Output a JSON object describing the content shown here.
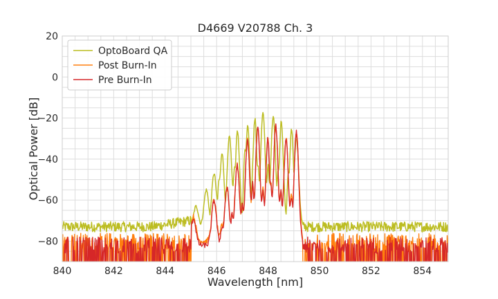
{
  "chart_data": {
    "type": "line",
    "title": "D4669 V20788 Ch. 3",
    "xlabel": "Wavelength [nm]",
    "ylabel": "Optical Power [dB]",
    "xlim": [
      840,
      855
    ],
    "ylim": [
      -90,
      20
    ],
    "xticks": [
      840,
      842,
      844,
      846,
      848,
      850,
      852,
      854
    ],
    "yticks": [
      20,
      0,
      -20,
      -40,
      -60,
      -80
    ],
    "ytick_labels": [
      "20",
      "0",
      "−20",
      "−40",
      "−60",
      "−80"
    ],
    "grid": true,
    "legend_position": "top-left",
    "series": [
      {
        "name": "OptoBoard QA",
        "color": "#bcbd22",
        "noise_floor": -73,
        "peaks": [
          {
            "x": 845.2,
            "y": -63
          },
          {
            "x": 845.6,
            "y": -55
          },
          {
            "x": 845.9,
            "y": -47
          },
          {
            "x": 846.2,
            "y": -36
          },
          {
            "x": 846.5,
            "y": -29
          },
          {
            "x": 846.8,
            "y": -25
          },
          {
            "x": 847.2,
            "y": -23
          },
          {
            "x": 847.5,
            "y": -19
          },
          {
            "x": 847.8,
            "y": -17
          },
          {
            "x": 848.2,
            "y": -19
          },
          {
            "x": 848.5,
            "y": -20
          },
          {
            "x": 848.9,
            "y": -24
          },
          {
            "x": 849.1,
            "y": -30
          }
        ],
        "troughs": [
          {
            "x": 846.1,
            "y": -50
          },
          {
            "x": 846.7,
            "y": -44
          },
          {
            "x": 847.1,
            "y": -36
          },
          {
            "x": 847.6,
            "y": -43
          },
          {
            "x": 848.0,
            "y": -43
          },
          {
            "x": 848.4,
            "y": -46
          },
          {
            "x": 848.8,
            "y": -47
          }
        ]
      },
      {
        "name": "Post Burn-In",
        "color": "#ff7f0e",
        "noise_floor": -80,
        "peaks": [
          {
            "x": 845.1,
            "y": -68
          },
          {
            "x": 845.9,
            "y": -60
          },
          {
            "x": 846.4,
            "y": -54
          },
          {
            "x": 846.8,
            "y": -43
          },
          {
            "x": 847.2,
            "y": -31
          },
          {
            "x": 847.6,
            "y": -25
          },
          {
            "x": 848.0,
            "y": -29
          },
          {
            "x": 848.3,
            "y": -24
          },
          {
            "x": 848.7,
            "y": -30
          },
          {
            "x": 849.1,
            "y": -27
          }
        ],
        "troughs": [
          {
            "x": 846.2,
            "y": -72
          },
          {
            "x": 846.6,
            "y": -66
          },
          {
            "x": 847.0,
            "y": -62
          },
          {
            "x": 847.4,
            "y": -52
          },
          {
            "x": 847.8,
            "y": -54
          },
          {
            "x": 848.1,
            "y": -52
          },
          {
            "x": 848.5,
            "y": -55
          },
          {
            "x": 848.9,
            "y": -58
          }
        ]
      },
      {
        "name": "Pre Burn-In",
        "color": "#d62728",
        "noise_floor": -82,
        "peaks": [
          {
            "x": 845.1,
            "y": -69
          },
          {
            "x": 845.9,
            "y": -60
          },
          {
            "x": 846.4,
            "y": -54
          },
          {
            "x": 846.8,
            "y": -43
          },
          {
            "x": 847.2,
            "y": -31
          },
          {
            "x": 847.6,
            "y": -24
          },
          {
            "x": 848.0,
            "y": -29
          },
          {
            "x": 848.3,
            "y": -24
          },
          {
            "x": 848.7,
            "y": -31
          },
          {
            "x": 849.1,
            "y": -27
          }
        ],
        "troughs": [
          {
            "x": 846.2,
            "y": -73
          },
          {
            "x": 846.6,
            "y": -67
          },
          {
            "x": 847.0,
            "y": -62
          },
          {
            "x": 847.4,
            "y": -52
          },
          {
            "x": 847.8,
            "y": -55
          },
          {
            "x": 848.1,
            "y": -52
          },
          {
            "x": 848.5,
            "y": -56
          },
          {
            "x": 848.9,
            "y": -58
          }
        ]
      }
    ]
  }
}
